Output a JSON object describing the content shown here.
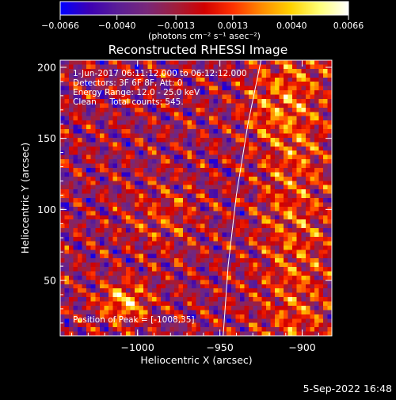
{
  "chart_data": {
    "type": "heatmap",
    "title": "Reconstructed RHESSI Image",
    "xlabel": "Heliocentric X (arcsec)",
    "ylabel": "Heliocentric Y (arcsec)",
    "xlim": [
      -1047,
      -882
    ],
    "ylim": [
      11,
      205
    ],
    "xticks": [
      -1000,
      -950,
      -900
    ],
    "xtick_labels": [
      "−1000",
      "−950",
      "−900"
    ],
    "yticks": [
      50,
      100,
      150,
      200
    ],
    "ytick_labels": [
      "50",
      "100",
      "150",
      "200"
    ],
    "colorbar": {
      "range": [
        -0.0066,
        0.0066
      ],
      "ticks": [
        -0.0066,
        -0.004,
        -0.0013,
        0.0013,
        0.004,
        0.0066
      ],
      "tick_labels": [
        "−0.0066",
        "−0.0040",
        "−0.0013",
        "0.0013",
        "0.0040",
        "0.0066"
      ],
      "unit_label": "(photons cm⁻² s⁻¹ asec⁻²)"
    },
    "annotations": {
      "time_range": "1-Jun-2017 06:11:12.000 to 06:12:12.000",
      "detectors": "Detectors: 3F 6F 8F, Att: 0",
      "energy": "Energy Range: 12.0 - 25.0 keV",
      "method": "Clean     Total counts: 545.",
      "peak": "Position of Peak = [-1008,35]"
    },
    "limb_curve": [
      [
        -948,
        11
      ],
      [
        -945,
        60
      ],
      [
        -940,
        110
      ],
      [
        -933,
        160
      ],
      [
        -925,
        205
      ]
    ],
    "peak": [
      -1008,
      35
    ]
  },
  "footer": {
    "date": "5-Sep-2022 16:48"
  },
  "colors": {
    "background": "#000000",
    "foreground": "#ffffff",
    "colormap": [
      "#0000ff",
      "#3c00b4",
      "#5a1e96",
      "#78287a",
      "#a01e3c",
      "#d20000",
      "#ff3200",
      "#ff8c00",
      "#ffd200",
      "#ffff78",
      "#ffffff"
    ]
  }
}
